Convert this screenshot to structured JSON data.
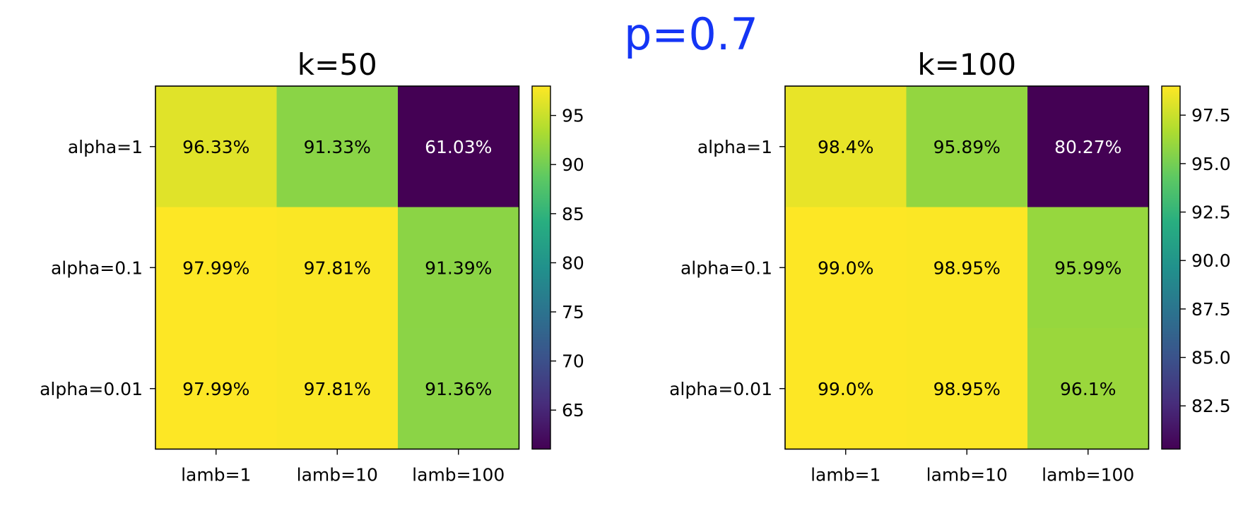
{
  "suptitle": "p=0.7",
  "chart_data": [
    {
      "type": "heatmap",
      "title": "k=50",
      "x_categories": [
        "lamb=1",
        "lamb=10",
        "lamb=100"
      ],
      "y_categories": [
        "alpha=1",
        "alpha=0.1",
        "alpha=0.01"
      ],
      "values": [
        [
          96.33,
          91.33,
          61.03
        ],
        [
          97.99,
          97.81,
          91.39
        ],
        [
          97.99,
          97.81,
          91.36
        ]
      ],
      "cell_labels": [
        [
          "96.33%",
          "91.33%",
          "61.03%"
        ],
        [
          "97.99%",
          "97.81%",
          "91.39%"
        ],
        [
          "97.99%",
          "97.81%",
          "91.36%"
        ]
      ],
      "colorbar": {
        "range": [
          61.03,
          97.99
        ],
        "ticks": [
          65,
          70,
          75,
          80,
          85,
          90,
          95
        ],
        "tick_labels": [
          "65",
          "70",
          "75",
          "80",
          "85",
          "90",
          "95"
        ]
      },
      "colormap": "viridis"
    },
    {
      "type": "heatmap",
      "title": "k=100",
      "x_categories": [
        "lamb=1",
        "lamb=10",
        "lamb=100"
      ],
      "y_categories": [
        "alpha=1",
        "alpha=0.1",
        "alpha=0.01"
      ],
      "values": [
        [
          98.4,
          95.89,
          80.27
        ],
        [
          99.0,
          98.95,
          95.99
        ],
        [
          99.0,
          98.95,
          96.1
        ]
      ],
      "cell_labels": [
        [
          "98.4%",
          "95.89%",
          "80.27%"
        ],
        [
          "99.0%",
          "98.95%",
          "95.99%"
        ],
        [
          "99.0%",
          "98.95%",
          "96.1%"
        ]
      ],
      "colorbar": {
        "range": [
          80.27,
          99.0
        ],
        "ticks": [
          82.5,
          85.0,
          87.5,
          90.0,
          92.5,
          95.0,
          97.5
        ],
        "tick_labels": [
          "82.5",
          "85.0",
          "87.5",
          "90.0",
          "92.5",
          "95.0",
          "97.5"
        ]
      },
      "colormap": "viridis"
    }
  ]
}
